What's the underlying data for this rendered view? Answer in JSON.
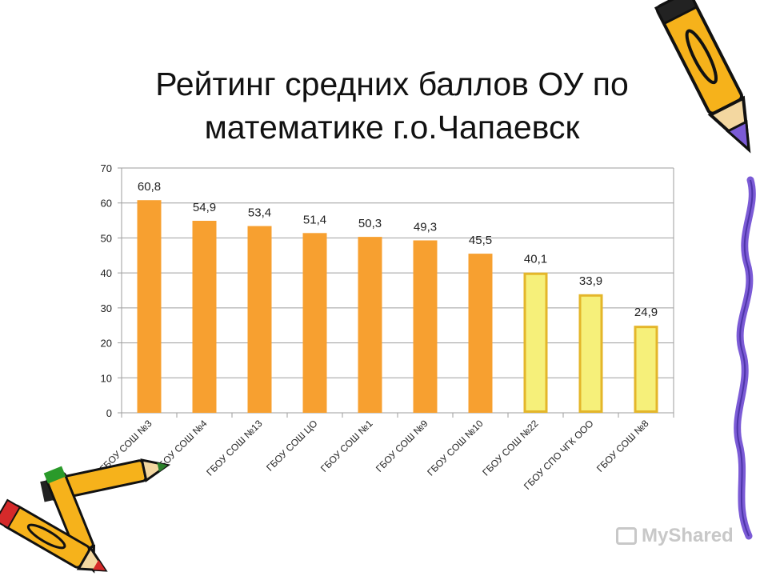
{
  "title": "Рейтинг средних баллов ОУ по математике г.о.Чапаевск",
  "watermark": "MyShared",
  "colors": {
    "orange": "#F7A030",
    "yellow_fill": "#F6F07A",
    "yellow_stroke": "#E4B62A",
    "grid": "#9E9E9E",
    "purple_ribbon": "#7B5BD6"
  },
  "chart_data": {
    "type": "bar",
    "categories": [
      "ГБОУ СОШ №3",
      "ГБОУ СОШ №4",
      "ГБОУ СОШ №13",
      "ГБОУ СОШ ЦО",
      "ГБОУ СОШ №1",
      "ГБОУ СОШ №9",
      "ГБОУ СОШ №10",
      "ГБОУ СОШ №22",
      "ГБОУ СПО ЧГК ООО",
      "ГБОУ СОШ №8"
    ],
    "values": [
      60.8,
      54.9,
      53.4,
      51.4,
      50.3,
      49.3,
      45.5,
      40.1,
      33.9,
      24.9
    ],
    "value_labels": [
      "60,8",
      "54,9",
      "53,4",
      "51,4",
      "50,3",
      "49,3",
      "45,5",
      "40,1",
      "33,9",
      "24,9"
    ],
    "bar_styles": [
      "orange",
      "orange",
      "orange",
      "orange",
      "orange",
      "orange",
      "orange",
      "yellow",
      "yellow",
      "yellow"
    ],
    "ylim": [
      0,
      70
    ],
    "yticks": [
      0,
      10,
      20,
      30,
      40,
      50,
      60,
      70
    ],
    "grid": true,
    "legend": "none"
  }
}
